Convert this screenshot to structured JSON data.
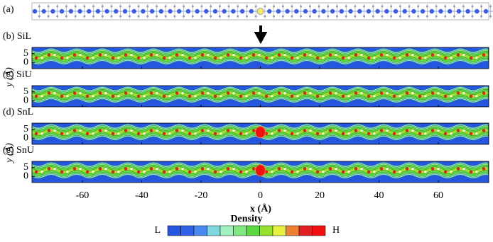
{
  "chart_data": {
    "type": "heatmap",
    "structure_label": "(a)",
    "panels": [
      {
        "label": "(b) SiL",
        "highlight": false
      },
      {
        "label": "(c) SiU",
        "highlight": false
      },
      {
        "label": "(d) SnL",
        "highlight": true
      },
      {
        "label": "(e) SnU",
        "highlight": true
      }
    ],
    "x_label": "x (Å)",
    "y_label": "y (Å)",
    "xlim": [
      -77,
      77
    ],
    "xticks": [
      -60,
      -40,
      -20,
      0,
      20,
      40,
      60
    ],
    "ylim": [
      -3.5,
      8.5
    ],
    "yticks": [
      0,
      5
    ],
    "colorbar_title": "Density",
    "colorbar_low": "L",
    "colorbar_high": "H",
    "colormap": [
      "#2456e0",
      "#2f62e8",
      "#4a8af0",
      "#7fd8e0",
      "#a0f0c0",
      "#80e880",
      "#5cd840",
      "#98e030",
      "#e8f040",
      "#f08030",
      "#e02020",
      "#f01010"
    ]
  }
}
